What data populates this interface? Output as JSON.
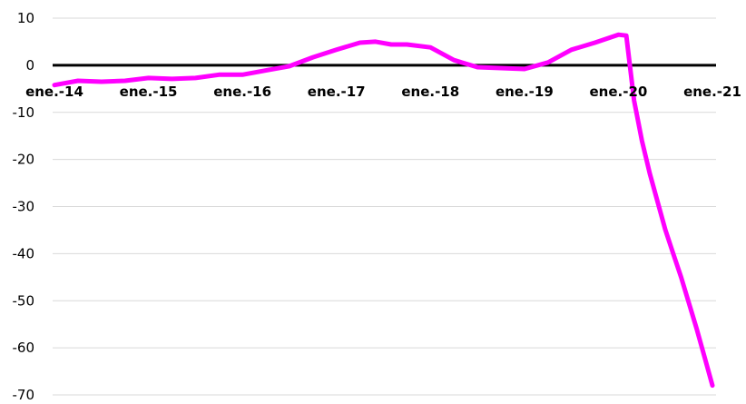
{
  "chart_data": {
    "type": "line",
    "title": "",
    "xlabel": "",
    "ylabel": "",
    "ylim": [
      -70,
      10
    ],
    "y_ticks": [
      "10",
      "0",
      "-10",
      "-20",
      "-30",
      "-40",
      "-50",
      "-60",
      "-70"
    ],
    "y_tick_values": [
      10,
      0,
      -10,
      -20,
      -30,
      -40,
      -50,
      -60,
      -70
    ],
    "x_range": [
      "2014-01",
      "2021-01"
    ],
    "x_ticks": [
      {
        "value": "2014-01",
        "label": "ene.-14"
      },
      {
        "value": "2015-01",
        "label": "ene.-15"
      },
      {
        "value": "2016-01",
        "label": "ene.-16"
      },
      {
        "value": "2017-01",
        "label": "ene.-17"
      },
      {
        "value": "2018-01",
        "label": "ene.-18"
      },
      {
        "value": "2019-01",
        "label": "ene.-19"
      },
      {
        "value": "2020-01",
        "label": "ene.-20"
      },
      {
        "value": "2021-01",
        "label": "ene.-21"
      }
    ],
    "x_tick_label_position": "along zero line",
    "grid": "horizontal",
    "zero_line": true,
    "legend": "none",
    "series": [
      {
        "color": "#ff00ff",
        "points": [
          {
            "x": "2014-01",
            "y": -4.2
          },
          {
            "x": "2014-04",
            "y": -3.3
          },
          {
            "x": "2014-07",
            "y": -3.5
          },
          {
            "x": "2014-10",
            "y": -3.3
          },
          {
            "x": "2015-01",
            "y": -2.7
          },
          {
            "x": "2015-04",
            "y": -2.9
          },
          {
            "x": "2015-07",
            "y": -2.7
          },
          {
            "x": "2015-10",
            "y": -2.0
          },
          {
            "x": "2016-01",
            "y": -2.0
          },
          {
            "x": "2016-04",
            "y": -1.1
          },
          {
            "x": "2016-07",
            "y": -0.2
          },
          {
            "x": "2016-10",
            "y": 1.7
          },
          {
            "x": "2017-01",
            "y": 3.3
          },
          {
            "x": "2017-04",
            "y": 4.8
          },
          {
            "x": "2017-06",
            "y": 5.0
          },
          {
            "x": "2017-08",
            "y": 4.4
          },
          {
            "x": "2017-10",
            "y": 4.4
          },
          {
            "x": "2018-01",
            "y": 3.8
          },
          {
            "x": "2018-04",
            "y": 1.1
          },
          {
            "x": "2018-07",
            "y": -0.4
          },
          {
            "x": "2018-10",
            "y": -0.6
          },
          {
            "x": "2019-01",
            "y": -0.8
          },
          {
            "x": "2019-04",
            "y": 0.6
          },
          {
            "x": "2019-07",
            "y": 3.3
          },
          {
            "x": "2019-10",
            "y": 4.8
          },
          {
            "x": "2020-01",
            "y": 6.5
          },
          {
            "x": "2020-02",
            "y": 6.3
          },
          {
            "x": "2020-03",
            "y": -7.5
          },
          {
            "x": "2020-04",
            "y": -16.0
          },
          {
            "x": "2020-05",
            "y": -23.0
          },
          {
            "x": "2020-06",
            "y": -29.0
          },
          {
            "x": "2020-07",
            "y": -35.0
          },
          {
            "x": "2020-08",
            "y": -40.0
          },
          {
            "x": "2020-09",
            "y": -45.0
          },
          {
            "x": "2020-10",
            "y": -50.5
          },
          {
            "x": "2020-11",
            "y": -56.0
          },
          {
            "x": "2020-12",
            "y": -62.0
          },
          {
            "x": "2021-01",
            "y": -68.0
          }
        ]
      }
    ]
  }
}
